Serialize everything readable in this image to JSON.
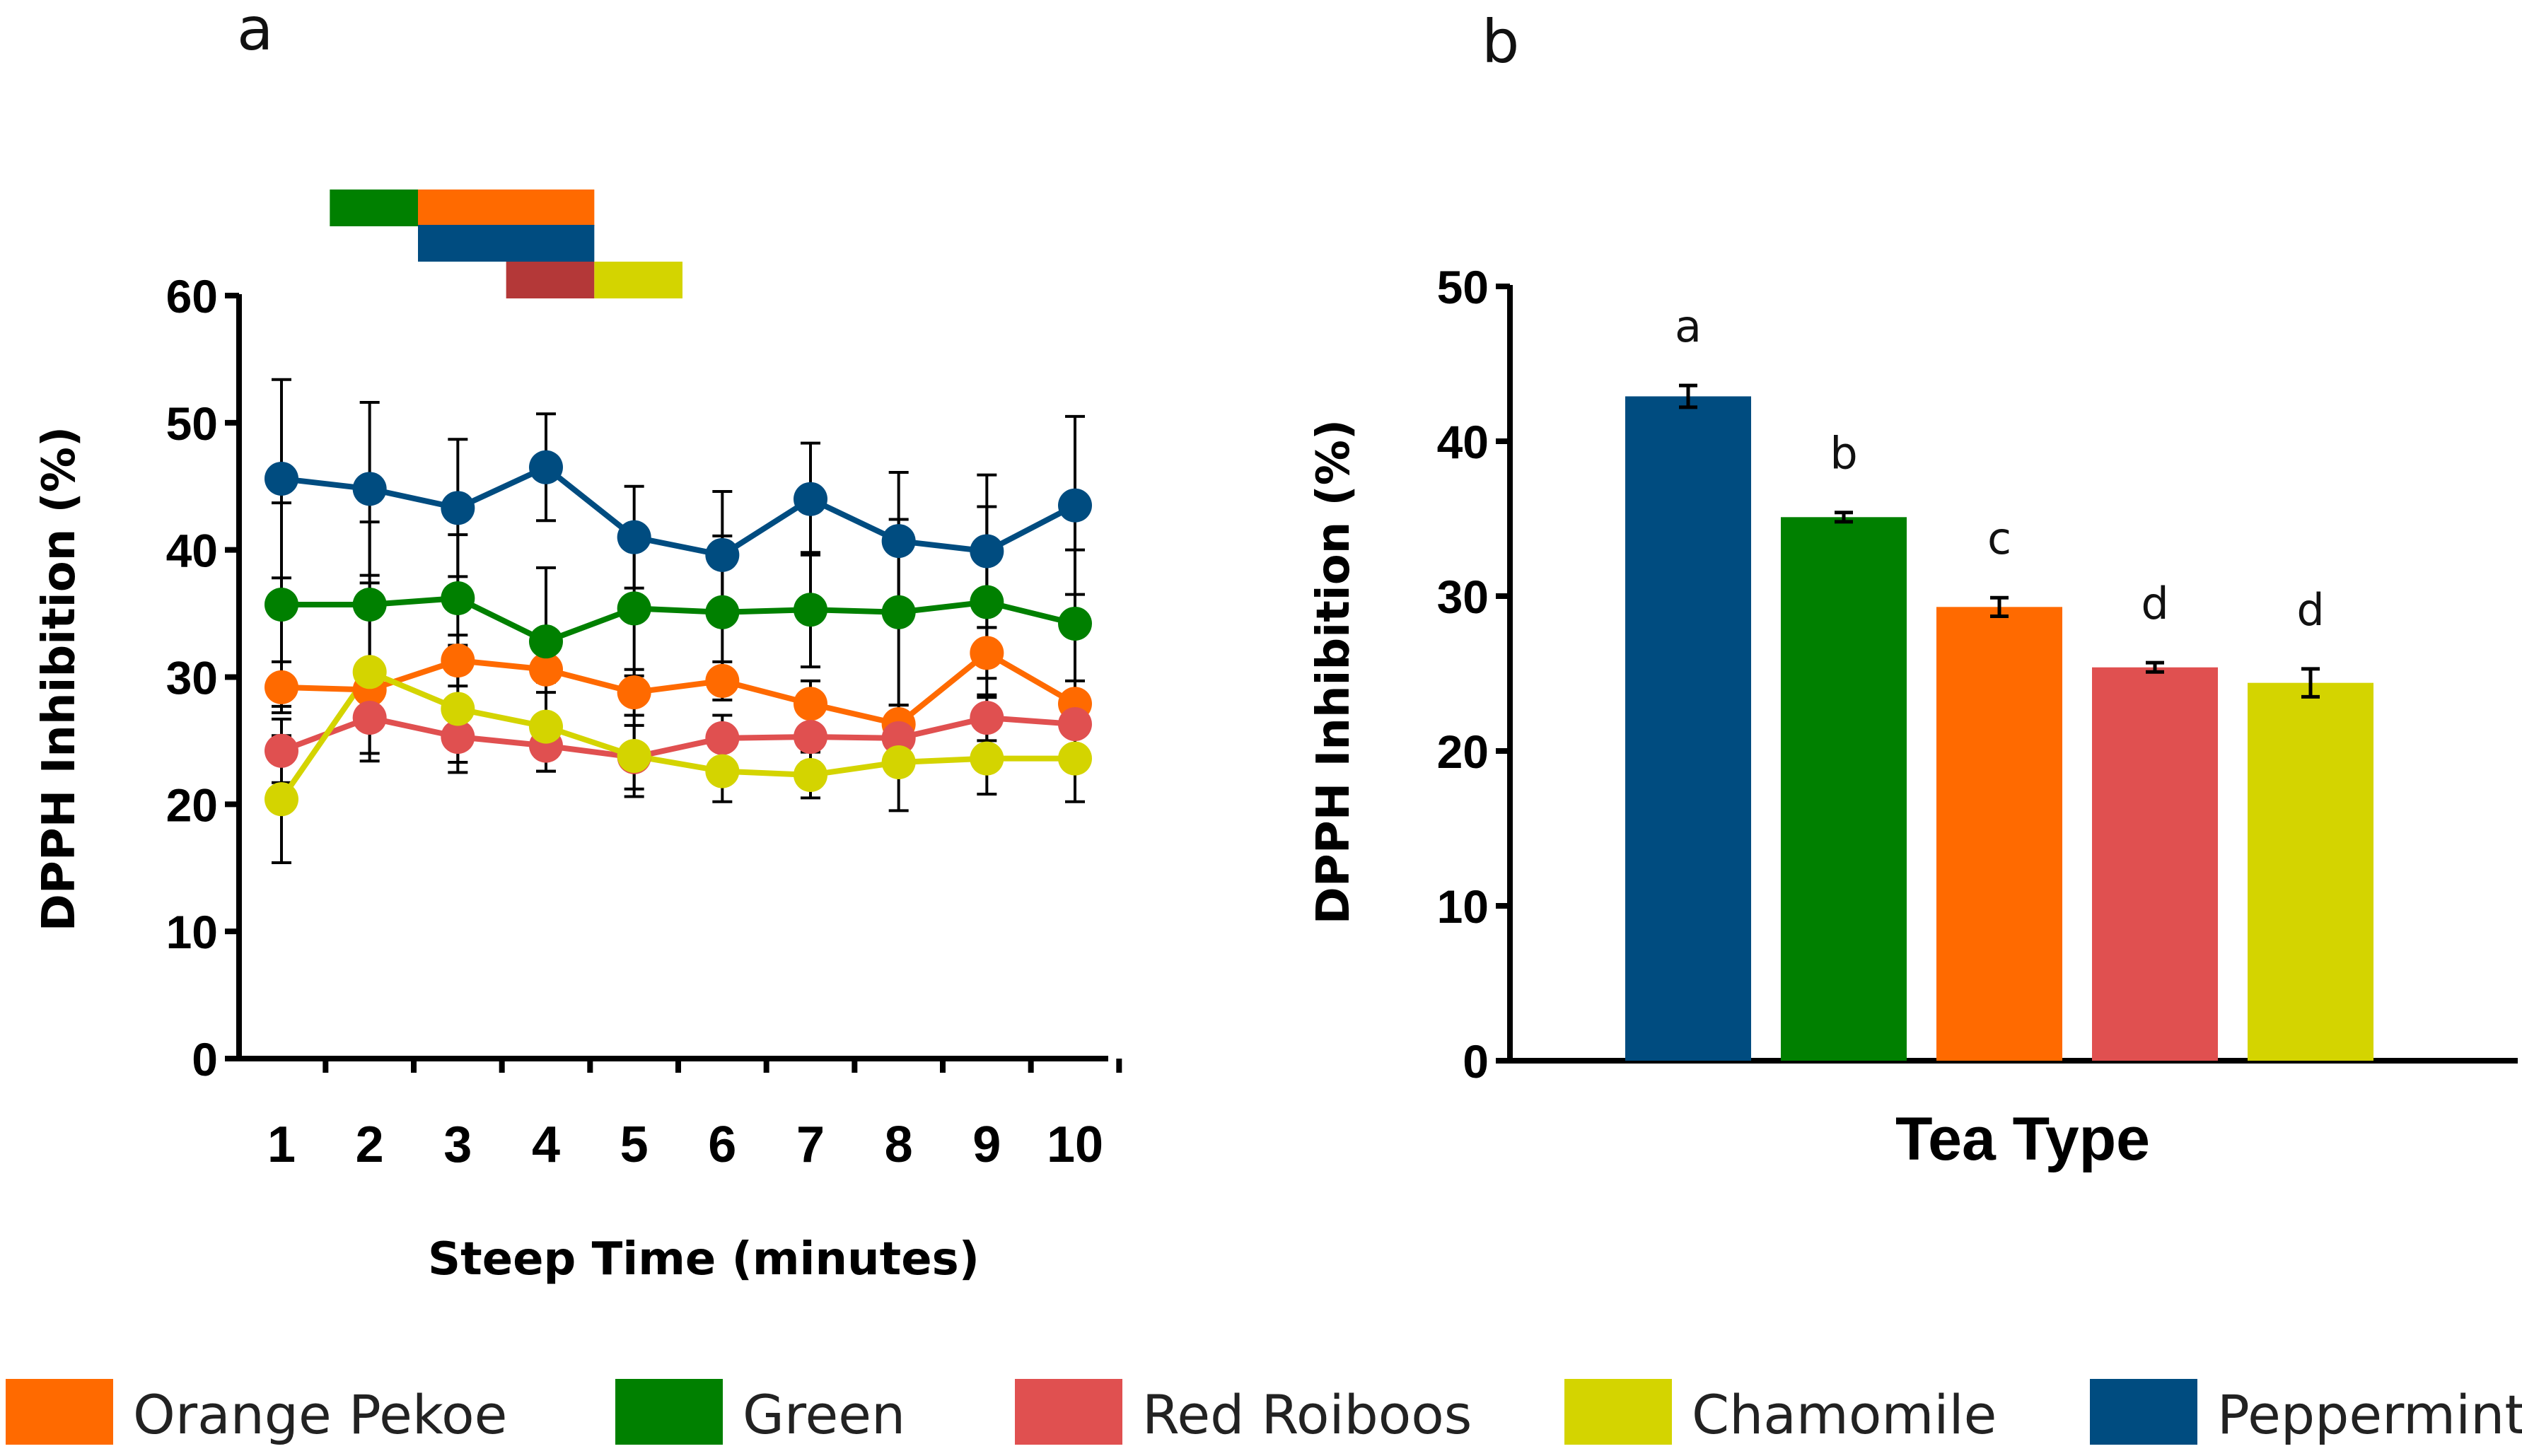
{
  "panel_a_label": "a",
  "panel_b_label": "b",
  "colors": {
    "Orange Pekoe": "#FF6A00",
    "Green": "#008000",
    "Red Roiboos": "#E05050",
    "Chamomile": "#D4D400",
    "Peppermint": "#004C80",
    "sig_bar_red": "#B43838"
  },
  "chart_data": [
    {
      "type": "line",
      "title": "",
      "xlabel": "Steep Time (minutes)",
      "ylabel": "DPPH Inhibition (%)",
      "ylim": [
        0,
        60
      ],
      "yticks": [
        0,
        10,
        20,
        30,
        40,
        50,
        60
      ],
      "x": [
        1,
        2,
        3,
        4,
        5,
        6,
        7,
        8,
        9,
        10
      ],
      "series": [
        {
          "name": "Orange Pekoe",
          "values": [
            29.2,
            29.0,
            31.3,
            30.6,
            28.8,
            29.7,
            27.9,
            26.3,
            31.9,
            27.9
          ],
          "errors": [
            2.0,
            1.5,
            2.0,
            1.8,
            1.8,
            1.5,
            1.8,
            1.5,
            2.0,
            1.8
          ]
        },
        {
          "name": "Green",
          "values": [
            35.7,
            35.7,
            36.2,
            32.8,
            35.4,
            35.1,
            35.3,
            35.1,
            35.9,
            34.2
          ],
          "errors": [
            8.0,
            6.5,
            5.0,
            5.8,
            5.3,
            6.0,
            4.5,
            7.3,
            7.5,
            5.8
          ]
        },
        {
          "name": "Red Roiboos",
          "values": [
            24.2,
            26.8,
            25.3,
            24.6,
            23.7,
            25.2,
            25.3,
            25.2,
            26.8,
            26.3
          ],
          "errors": [
            2.5,
            2.8,
            2.0,
            2.0,
            2.5,
            1.8,
            2.0,
            2.0,
            1.8,
            2.5
          ]
        },
        {
          "name": "Chamomile",
          "values": [
            20.4,
            30.4,
            27.5,
            26.1,
            23.8,
            22.6,
            22.3,
            23.3,
            23.6,
            23.6
          ],
          "errors": [
            5.0,
            7.0,
            5.0,
            3.5,
            3.2,
            2.4,
            1.8,
            3.8,
            2.8,
            3.4
          ]
        },
        {
          "name": "Peppermint",
          "values": [
            45.6,
            44.8,
            43.3,
            46.5,
            41.0,
            39.6,
            44.0,
            40.7,
            39.9,
            43.5
          ],
          "errors": [
            7.8,
            6.8,
            5.4,
            4.2,
            4.0,
            5.0,
            4.4,
            5.4,
            6.0,
            7.0
          ]
        }
      ],
      "significance_bars": [
        {
          "row": 0,
          "start": 2,
          "end": 3,
          "color": "Green"
        },
        {
          "row": 0,
          "start": 3,
          "end": 5,
          "color": "Orange Pekoe"
        },
        {
          "row": 1,
          "start": 3,
          "end": 5,
          "color": "Peppermint"
        },
        {
          "row": 2,
          "start": 4,
          "end": 5,
          "color": "sig_bar_red"
        },
        {
          "row": 2,
          "start": 5,
          "end": 6,
          "color": "Chamomile"
        }
      ]
    },
    {
      "type": "bar",
      "title": "",
      "xlabel": "Tea Type",
      "ylabel": "DPPH Inhibition (%)",
      "ylim": [
        0,
        50
      ],
      "yticks": [
        0,
        10,
        20,
        30,
        40,
        50
      ],
      "categories": [
        "Peppermint",
        "Green",
        "Orange Pekoe",
        "Red Roiboos",
        "Chamomile"
      ],
      "values": [
        42.9,
        35.1,
        29.3,
        25.4,
        24.4
      ],
      "errors": [
        0.7,
        0.3,
        0.6,
        0.3,
        0.9
      ],
      "letters": [
        "a",
        "b",
        "c",
        "d",
        "d"
      ]
    }
  ],
  "legend": [
    "Orange Pekoe",
    "Green",
    "Red Roiboos",
    "Chamomile",
    "Peppermint"
  ]
}
